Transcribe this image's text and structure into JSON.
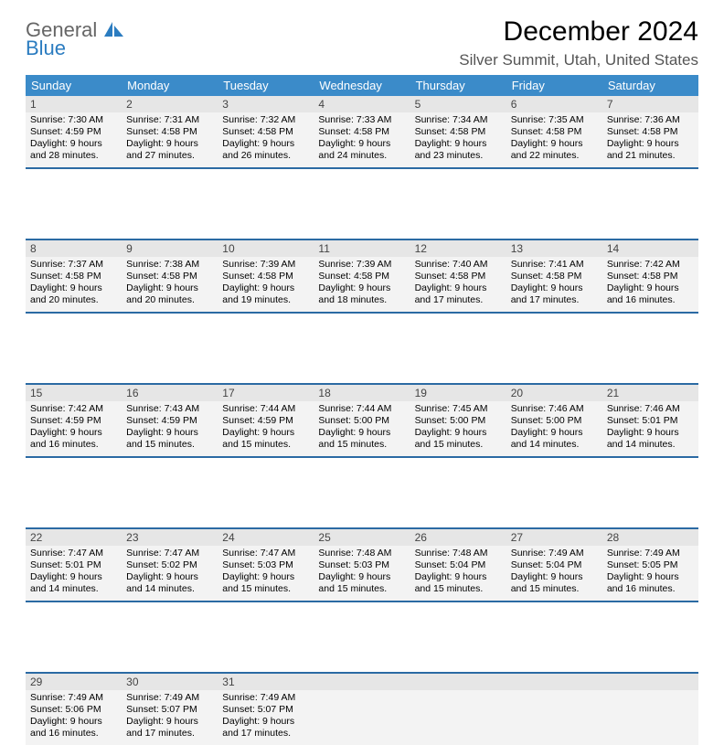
{
  "logo": {
    "line1": "General",
    "line2": "Blue"
  },
  "title": "December 2024",
  "location": "Silver Summit, Utah, United States",
  "header_row": {
    "bg": "#3b8bc9",
    "fg": "#ffffff",
    "days": [
      "Sunday",
      "Monday",
      "Tuesday",
      "Wednesday",
      "Thursday",
      "Friday",
      "Saturday"
    ]
  },
  "row_separator_color": "#2b6aa3",
  "cell_bg": "#f3f3f3",
  "daynum_bg": "#e6e6e6",
  "page_bg": "#ffffff",
  "weeks": [
    [
      {
        "n": "1",
        "sr": "7:30 AM",
        "ss": "4:59 PM",
        "dl": "9 hours and 28 minutes."
      },
      {
        "n": "2",
        "sr": "7:31 AM",
        "ss": "4:58 PM",
        "dl": "9 hours and 27 minutes."
      },
      {
        "n": "3",
        "sr": "7:32 AM",
        "ss": "4:58 PM",
        "dl": "9 hours and 26 minutes."
      },
      {
        "n": "4",
        "sr": "7:33 AM",
        "ss": "4:58 PM",
        "dl": "9 hours and 24 minutes."
      },
      {
        "n": "5",
        "sr": "7:34 AM",
        "ss": "4:58 PM",
        "dl": "9 hours and 23 minutes."
      },
      {
        "n": "6",
        "sr": "7:35 AM",
        "ss": "4:58 PM",
        "dl": "9 hours and 22 minutes."
      },
      {
        "n": "7",
        "sr": "7:36 AM",
        "ss": "4:58 PM",
        "dl": "9 hours and 21 minutes."
      }
    ],
    [
      {
        "n": "8",
        "sr": "7:37 AM",
        "ss": "4:58 PM",
        "dl": "9 hours and 20 minutes."
      },
      {
        "n": "9",
        "sr": "7:38 AM",
        "ss": "4:58 PM",
        "dl": "9 hours and 20 minutes."
      },
      {
        "n": "10",
        "sr": "7:39 AM",
        "ss": "4:58 PM",
        "dl": "9 hours and 19 minutes."
      },
      {
        "n": "11",
        "sr": "7:39 AM",
        "ss": "4:58 PM",
        "dl": "9 hours and 18 minutes."
      },
      {
        "n": "12",
        "sr": "7:40 AM",
        "ss": "4:58 PM",
        "dl": "9 hours and 17 minutes."
      },
      {
        "n": "13",
        "sr": "7:41 AM",
        "ss": "4:58 PM",
        "dl": "9 hours and 17 minutes."
      },
      {
        "n": "14",
        "sr": "7:42 AM",
        "ss": "4:58 PM",
        "dl": "9 hours and 16 minutes."
      }
    ],
    [
      {
        "n": "15",
        "sr": "7:42 AM",
        "ss": "4:59 PM",
        "dl": "9 hours and 16 minutes."
      },
      {
        "n": "16",
        "sr": "7:43 AM",
        "ss": "4:59 PM",
        "dl": "9 hours and 15 minutes."
      },
      {
        "n": "17",
        "sr": "7:44 AM",
        "ss": "4:59 PM",
        "dl": "9 hours and 15 minutes."
      },
      {
        "n": "18",
        "sr": "7:44 AM",
        "ss": "5:00 PM",
        "dl": "9 hours and 15 minutes."
      },
      {
        "n": "19",
        "sr": "7:45 AM",
        "ss": "5:00 PM",
        "dl": "9 hours and 15 minutes."
      },
      {
        "n": "20",
        "sr": "7:46 AM",
        "ss": "5:00 PM",
        "dl": "9 hours and 14 minutes."
      },
      {
        "n": "21",
        "sr": "7:46 AM",
        "ss": "5:01 PM",
        "dl": "9 hours and 14 minutes."
      }
    ],
    [
      {
        "n": "22",
        "sr": "7:47 AM",
        "ss": "5:01 PM",
        "dl": "9 hours and 14 minutes."
      },
      {
        "n": "23",
        "sr": "7:47 AM",
        "ss": "5:02 PM",
        "dl": "9 hours and 14 minutes."
      },
      {
        "n": "24",
        "sr": "7:47 AM",
        "ss": "5:03 PM",
        "dl": "9 hours and 15 minutes."
      },
      {
        "n": "25",
        "sr": "7:48 AM",
        "ss": "5:03 PM",
        "dl": "9 hours and 15 minutes."
      },
      {
        "n": "26",
        "sr": "7:48 AM",
        "ss": "5:04 PM",
        "dl": "9 hours and 15 minutes."
      },
      {
        "n": "27",
        "sr": "7:49 AM",
        "ss": "5:04 PM",
        "dl": "9 hours and 15 minutes."
      },
      {
        "n": "28",
        "sr": "7:49 AM",
        "ss": "5:05 PM",
        "dl": "9 hours and 16 minutes."
      }
    ],
    [
      {
        "n": "29",
        "sr": "7:49 AM",
        "ss": "5:06 PM",
        "dl": "9 hours and 16 minutes."
      },
      {
        "n": "30",
        "sr": "7:49 AM",
        "ss": "5:07 PM",
        "dl": "9 hours and 17 minutes."
      },
      {
        "n": "31",
        "sr": "7:49 AM",
        "ss": "5:07 PM",
        "dl": "9 hours and 17 minutes."
      },
      null,
      null,
      null,
      null
    ]
  ],
  "labels": {
    "sunrise": "Sunrise:",
    "sunset": "Sunset:",
    "daylight": "Daylight:"
  }
}
